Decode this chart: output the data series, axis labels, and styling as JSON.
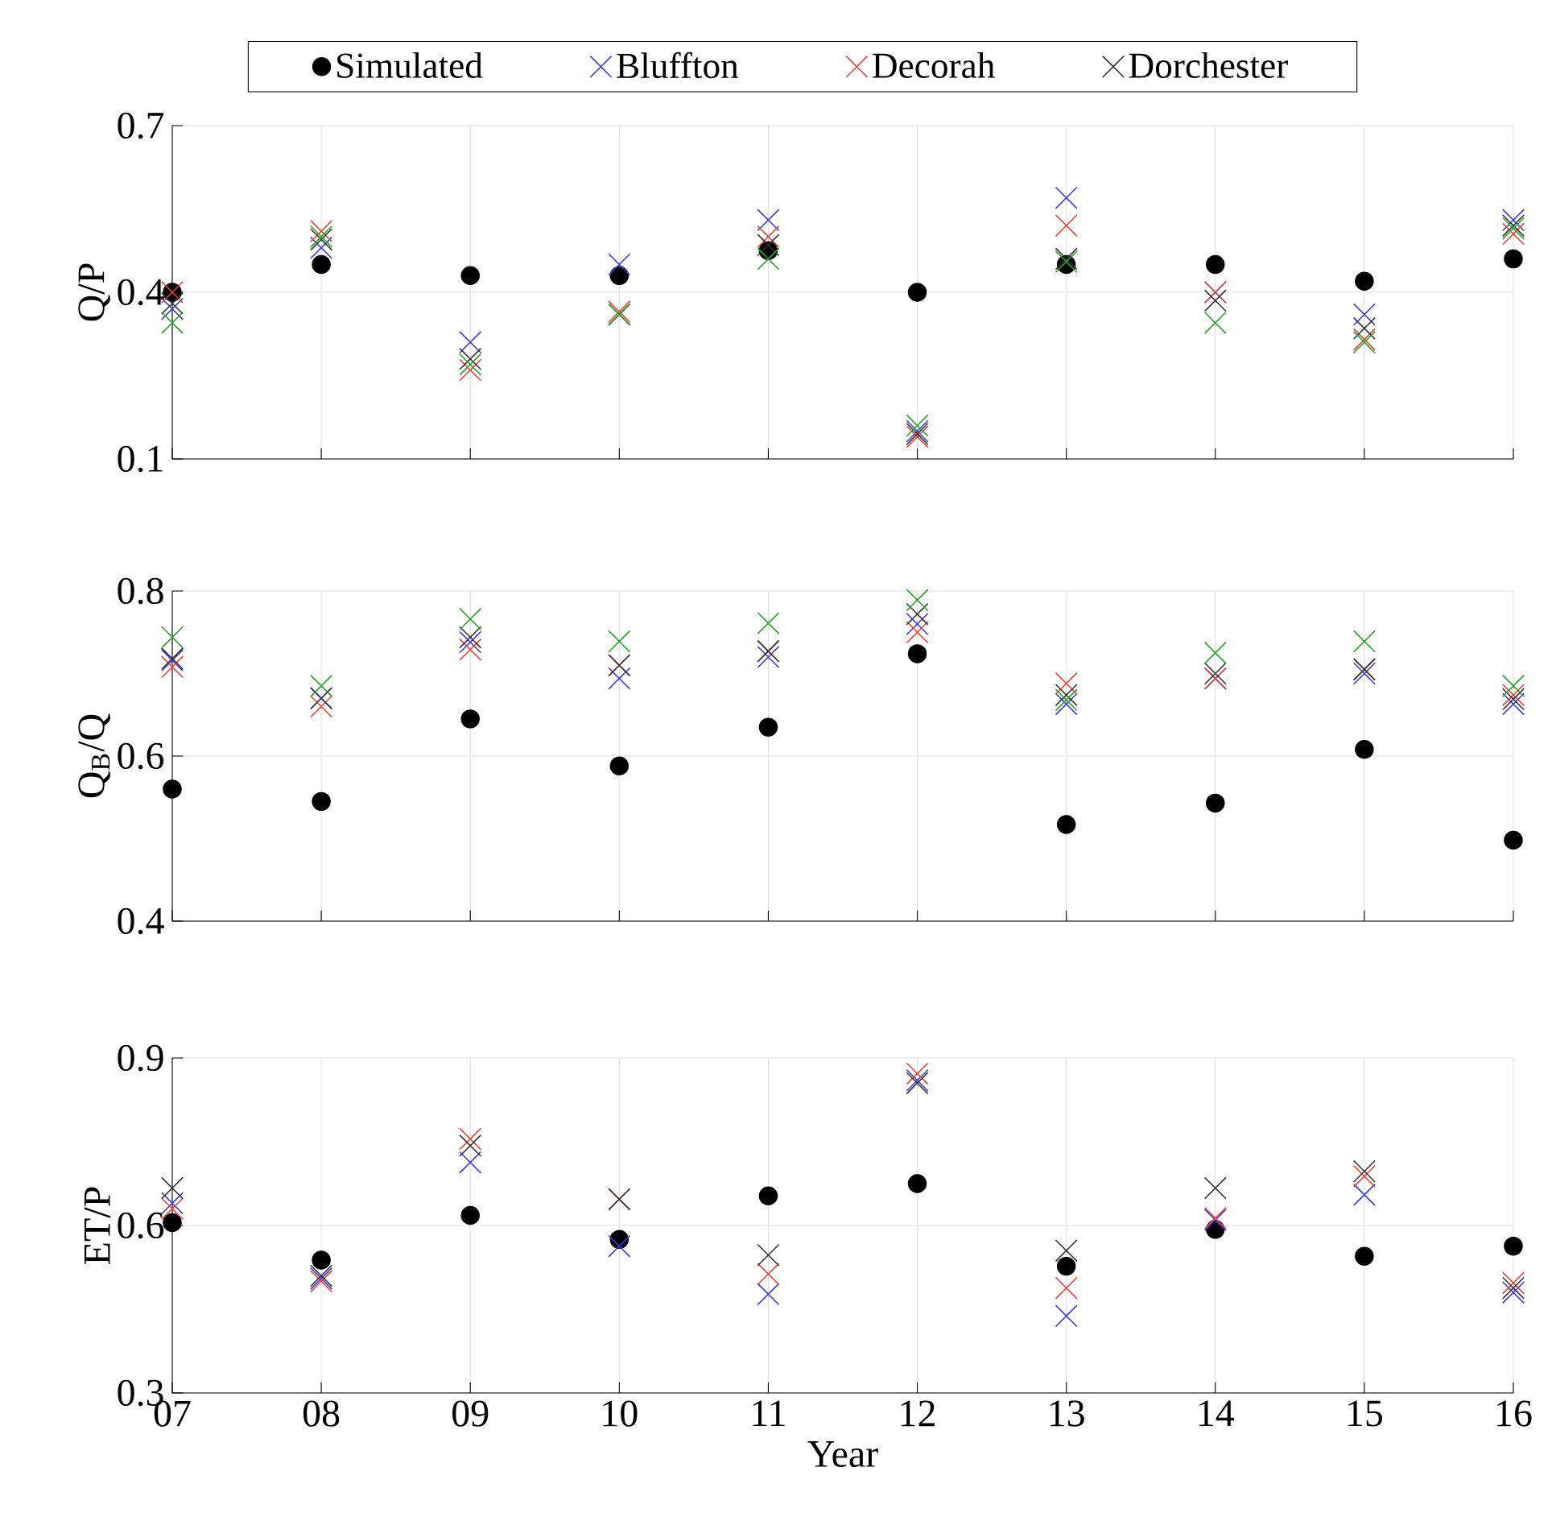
{
  "chart_data": [
    {
      "type": "scatter",
      "ylabel": "Q/P",
      "categories": [
        "07",
        "08",
        "09",
        "10",
        "11",
        "12",
        "13",
        "14",
        "15",
        "16"
      ],
      "ylim": [
        0.1,
        0.7
      ],
      "yticks": [
        0.1,
        0.4,
        0.7
      ],
      "grid": true,
      "legend": "top",
      "tick_labels": "y",
      "series": [
        {
          "name": "Simulated",
          "color": "#000000",
          "marker": "circle",
          "values": [
            0.4,
            0.45,
            0.43,
            0.43,
            0.475,
            0.4,
            0.45,
            0.45,
            0.42,
            0.46
          ]
        },
        {
          "name": "Bluffton",
          "color": "#3b3bd9",
          "marker": "cross",
          "values": [
            0.37,
            0.48,
            0.31,
            0.45,
            0.53,
            0.15,
            0.57,
            0.4,
            0.36,
            0.53
          ]
        },
        {
          "name": "Decorah",
          "color": "#e8443a",
          "marker": "cross",
          "values": [
            0.4,
            0.51,
            0.26,
            0.365,
            0.5,
            0.14,
            0.52,
            0.4,
            0.315,
            0.505
          ]
        },
        {
          "name": "Dorchester",
          "color": "#333333",
          "marker": "cross",
          "values": [
            0.38,
            0.495,
            0.28,
            0.36,
            0.485,
            0.145,
            0.46,
            0.385,
            0.335,
            0.52
          ]
        },
        {
          "color": "#2ca02c",
          "marker": "cross",
          "values": [
            0.345,
            0.5,
            0.27,
            0.36,
            0.46,
            0.16,
            0.455,
            0.345,
            0.31,
            0.515
          ]
        }
      ]
    },
    {
      "type": "scatter",
      "ylabel": "Q$_{B}$/Q",
      "categories": [
        "07",
        "08",
        "09",
        "10",
        "11",
        "12",
        "13",
        "14",
        "15",
        "16"
      ],
      "ylim": [
        0.4,
        0.8
      ],
      "yticks": [
        0.4,
        0.6,
        0.8
      ],
      "grid": true,
      "tick_labels": "y",
      "series": [
        {
          "color": "#000000",
          "marker": "circle",
          "values": [
            0.56,
            0.545,
            0.645,
            0.588,
            0.635,
            0.724,
            0.517,
            0.543,
            0.608,
            0.498
          ]
        },
        {
          "color": "#3b3bd9",
          "marker": "cross",
          "values": [
            0.716,
            0.67,
            0.738,
            0.694,
            0.72,
            0.76,
            0.663,
            0.694,
            0.7,
            0.663
          ]
        },
        {
          "color": "#e8443a",
          "marker": "cross",
          "values": [
            0.708,
            0.66,
            0.729,
            0.71,
            0.727,
            0.75,
            0.688,
            0.694,
            0.705,
            0.674
          ]
        },
        {
          "color": "#333333",
          "marker": "cross",
          "values": [
            0.718,
            0.67,
            0.744,
            0.71,
            0.727,
            0.772,
            0.674,
            0.7,
            0.705,
            0.669
          ]
        },
        {
          "color": "#2ca02c",
          "marker": "cross",
          "values": [
            0.744,
            0.685,
            0.766,
            0.739,
            0.761,
            0.789,
            0.668,
            0.725,
            0.739,
            0.685
          ]
        }
      ]
    },
    {
      "type": "scatter",
      "xlabel": "Year",
      "ylabel": "ET/P",
      "categories": [
        "07",
        "08",
        "09",
        "10",
        "11",
        "12",
        "13",
        "14",
        "15",
        "16"
      ],
      "ylim": [
        0.3,
        0.9
      ],
      "yticks": [
        0.3,
        0.6,
        0.9
      ],
      "grid": true,
      "series": [
        {
          "color": "#000000",
          "marker": "circle",
          "values": [
            0.605,
            0.538,
            0.618,
            0.575,
            0.653,
            0.675,
            0.527,
            0.593,
            0.545,
            0.563
          ]
        },
        {
          "color": "#3b3bd9",
          "marker": "cross",
          "values": [
            0.64,
            0.505,
            0.713,
            0.563,
            0.477,
            0.86,
            0.438,
            0.61,
            0.655,
            0.48
          ]
        },
        {
          "color": "#e8443a",
          "marker": "cross",
          "values": [
            0.63,
            0.5,
            0.755,
            0.647,
            0.513,
            0.872,
            0.488,
            0.613,
            0.688,
            0.497
          ]
        },
        {
          "color": "#333333",
          "marker": "cross",
          "values": [
            0.667,
            0.51,
            0.743,
            0.647,
            0.547,
            0.855,
            0.555,
            0.667,
            0.697,
            0.488
          ]
        }
      ]
    }
  ]
}
